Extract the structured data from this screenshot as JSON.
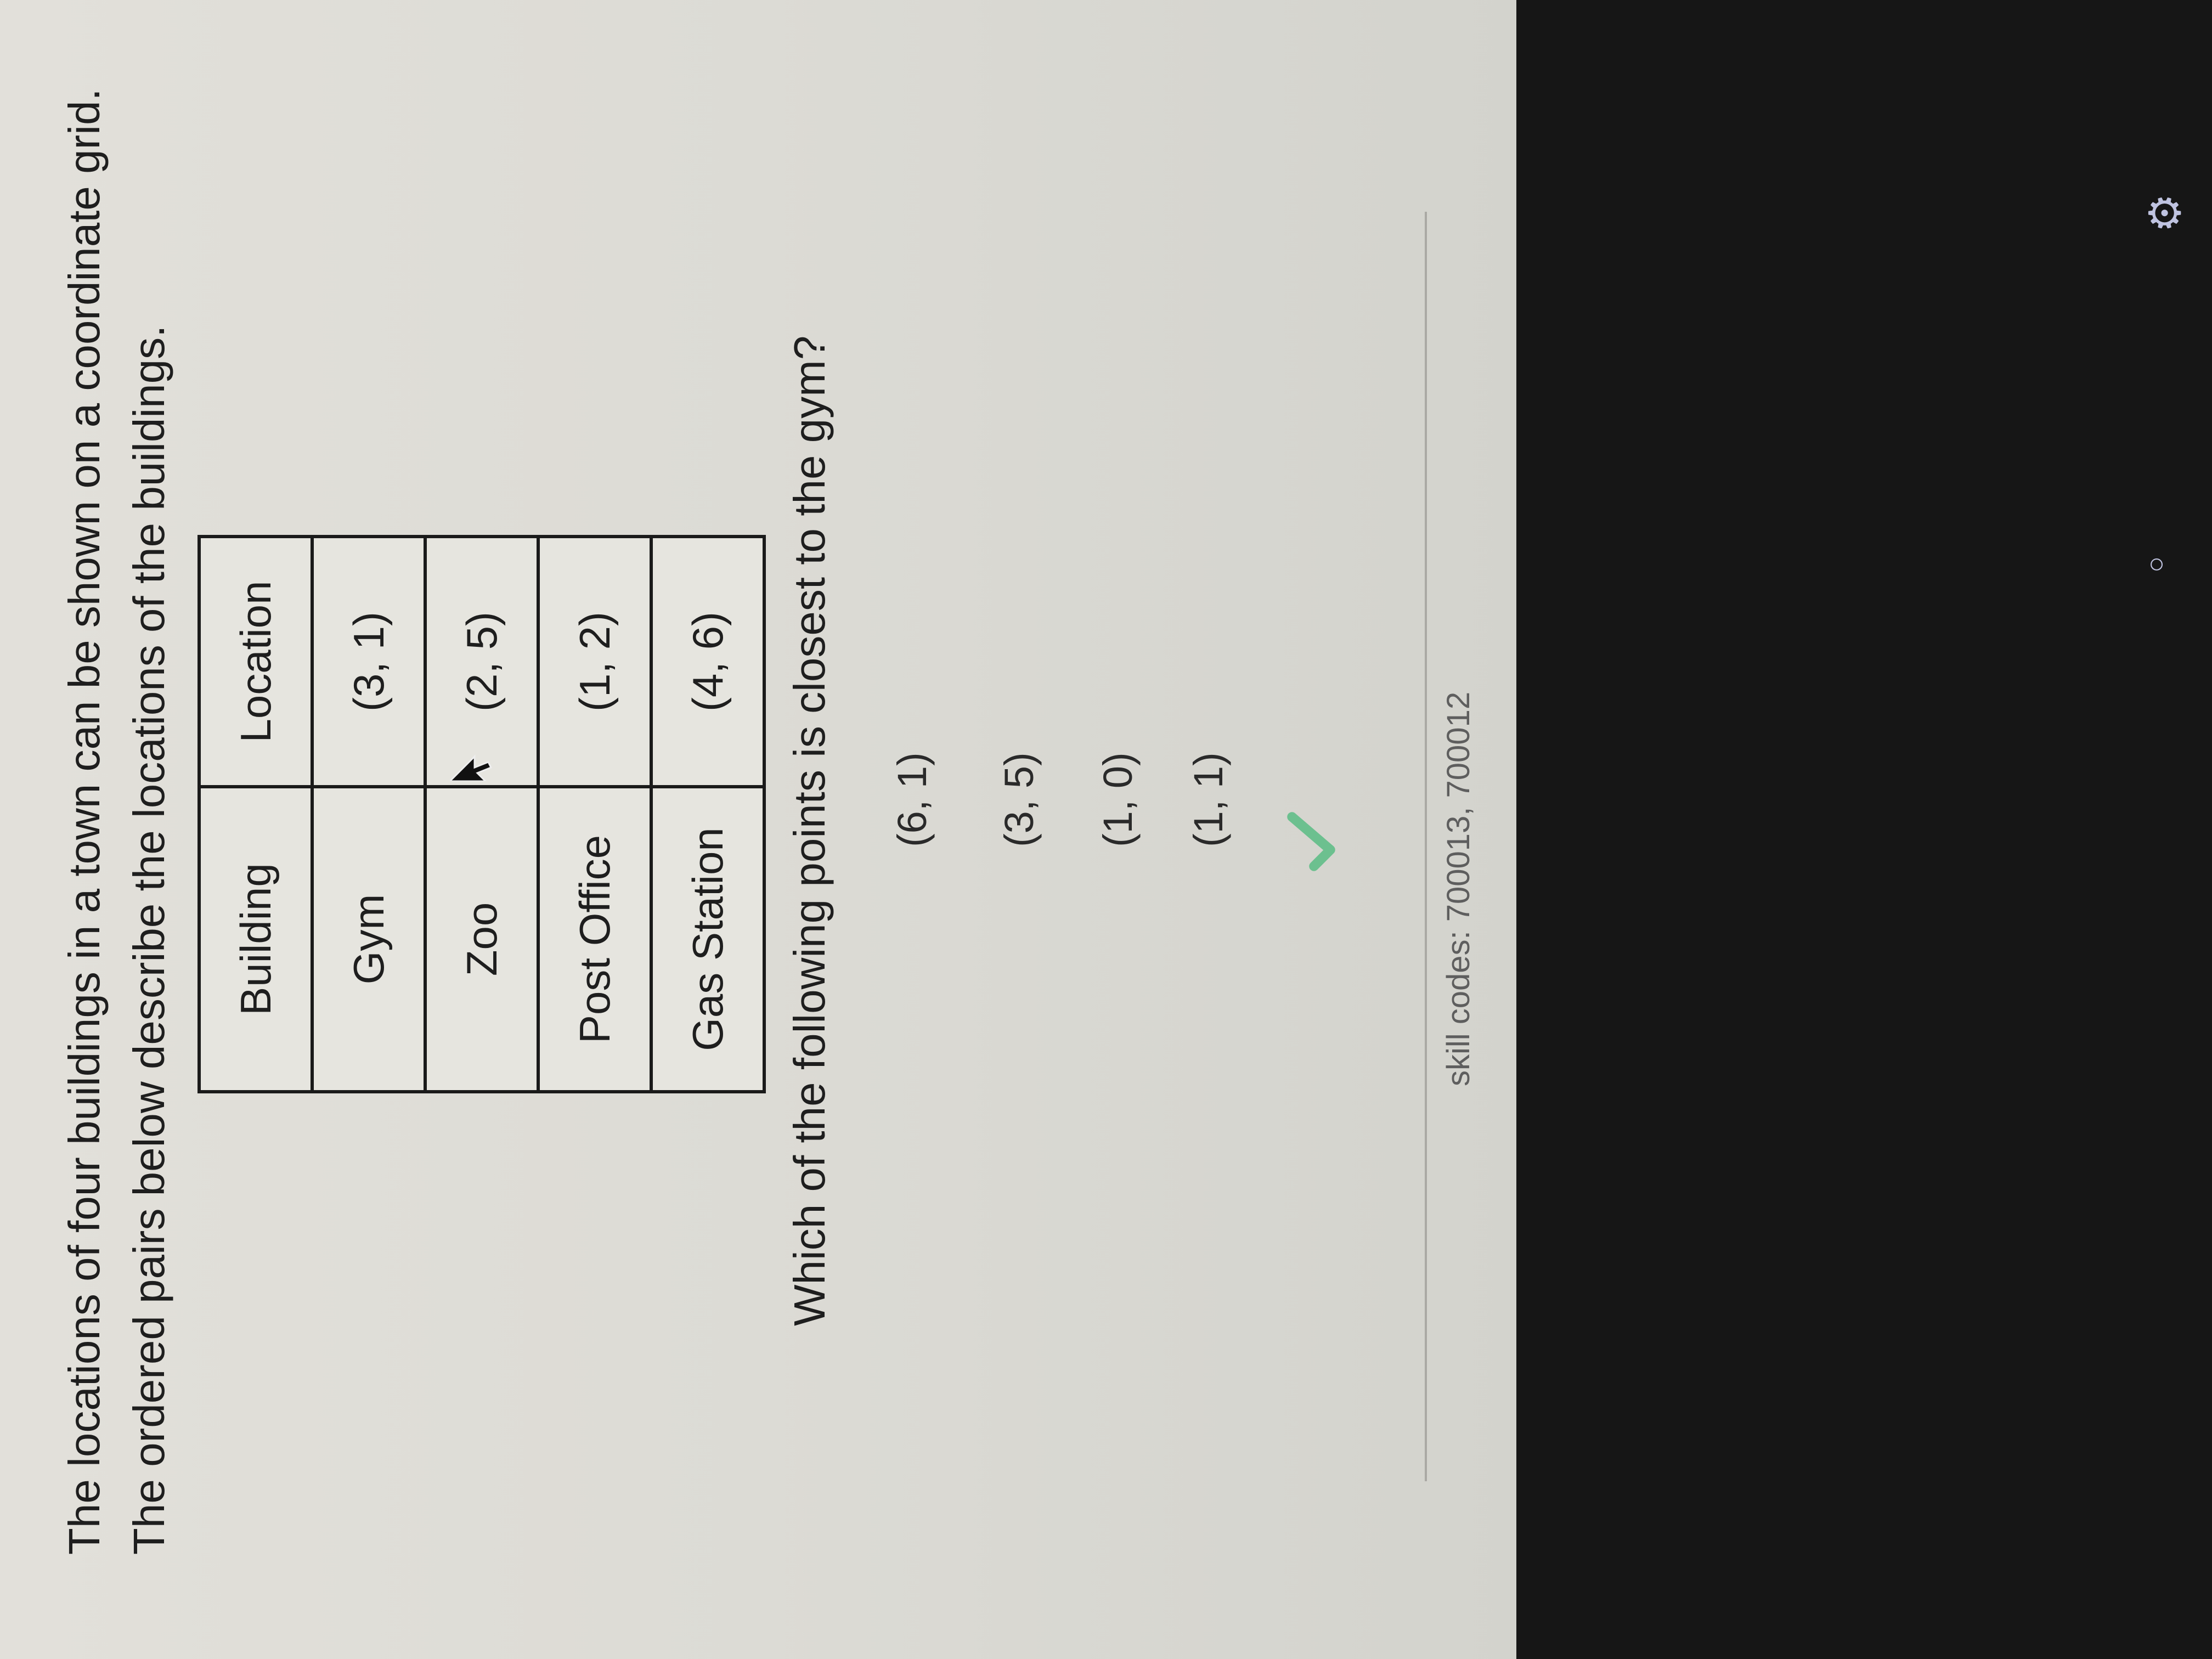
{
  "intro": "The locations of four buildings in a town can be shown on a coordinate grid. The ordered pairs below describe the locations of the buildings.",
  "table": {
    "headers": [
      "Building",
      "Location"
    ],
    "rows": [
      [
        "Gym",
        "(3, 1)"
      ],
      [
        "Zoo",
        "(2, 5)"
      ],
      [
        "Post Office",
        "(1, 2)"
      ],
      [
        "Gas Station",
        "(4, 6)"
      ]
    ]
  },
  "question": "Which of the following points is closest to the gym?",
  "options": [
    "(6, 1)",
    "(3, 5)",
    "(1, 0)",
    "(1, 1)"
  ],
  "check_icon": "check-icon",
  "check_color": "#6cc08f",
  "skill_codes": "skill codes: 700013, 700012"
}
